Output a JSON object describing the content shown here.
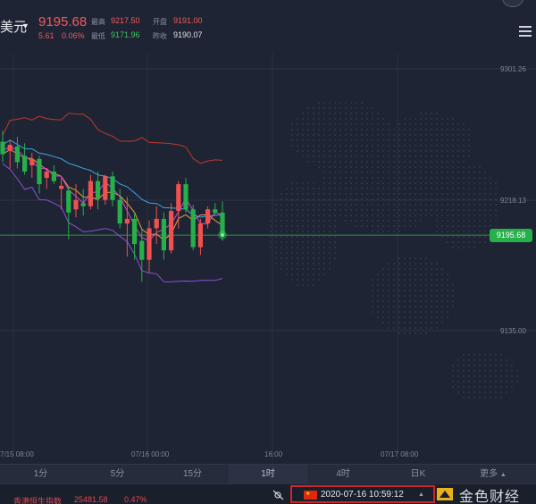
{
  "header": {
    "pair": "美元",
    "price": "9195.68",
    "change": "5.61",
    "change_pct": "0.06%",
    "ohlc": {
      "high_label": "最高",
      "high": "9217.50",
      "open_label": "开盘",
      "open": "9191.00",
      "low_label": "最低",
      "low": "9171.96",
      "prev_label": "昨收",
      "prev": "9190.07"
    }
  },
  "chart_data": {
    "type": "candlestick",
    "y_axis_ticks": [
      "9301.26",
      "9218.13",
      "9135.00"
    ],
    "x_axis_ticks": [
      "7/15 08:00",
      "07/16 00:00",
      "16:00",
      "07/17 08:00"
    ],
    "last_price": "9195.68",
    "candles": [
      {
        "o": 9255,
        "h": 9262,
        "l": 9242,
        "c": 9247
      },
      {
        "o": 9249,
        "h": 9256,
        "l": 9238,
        "c": 9253
      },
      {
        "o": 9252,
        "h": 9258,
        "l": 9238,
        "c": 9242
      },
      {
        "o": 9246,
        "h": 9254,
        "l": 9234,
        "c": 9236
      },
      {
        "o": 9240,
        "h": 9248,
        "l": 9232,
        "c": 9244
      },
      {
        "o": 9244,
        "h": 9246,
        "l": 9222,
        "c": 9228
      },
      {
        "o": 9232,
        "h": 9238,
        "l": 9225,
        "c": 9236
      },
      {
        "o": 9236,
        "h": 9240,
        "l": 9228,
        "c": 9230
      },
      {
        "o": 9225,
        "h": 9232,
        "l": 9212,
        "c": 9227
      },
      {
        "o": 9224,
        "h": 9226,
        "l": 9193,
        "c": 9210
      },
      {
        "o": 9212,
        "h": 9228,
        "l": 9207,
        "c": 9218
      },
      {
        "o": 9216,
        "h": 9225,
        "l": 9208,
        "c": 9214
      },
      {
        "o": 9214,
        "h": 9234,
        "l": 9212,
        "c": 9230
      },
      {
        "o": 9230,
        "h": 9236,
        "l": 9212,
        "c": 9219
      },
      {
        "o": 9218,
        "h": 9234,
        "l": 9215,
        "c": 9233
      },
      {
        "o": 9233,
        "h": 9236,
        "l": 9214,
        "c": 9218
      },
      {
        "o": 9218,
        "h": 9225,
        "l": 9200,
        "c": 9203
      },
      {
        "o": 9203,
        "h": 9220,
        "l": 9182,
        "c": 9206
      },
      {
        "o": 9206,
        "h": 9210,
        "l": 9180,
        "c": 9190
      },
      {
        "o": 9192,
        "h": 9200,
        "l": 9166,
        "c": 9180
      },
      {
        "o": 9180,
        "h": 9205,
        "l": 9172,
        "c": 9200
      },
      {
        "o": 9200,
        "h": 9214,
        "l": 9190,
        "c": 9206
      },
      {
        "o": 9206,
        "h": 9210,
        "l": 9180,
        "c": 9186
      },
      {
        "o": 9186,
        "h": 9216,
        "l": 9184,
        "c": 9211
      },
      {
        "o": 9211,
        "h": 9230,
        "l": 9200,
        "c": 9228
      },
      {
        "o": 9228,
        "h": 9232,
        "l": 9210,
        "c": 9212
      },
      {
        "o": 9212,
        "h": 9215,
        "l": 9186,
        "c": 9188
      },
      {
        "o": 9188,
        "h": 9206,
        "l": 9183,
        "c": 9203
      },
      {
        "o": 9203,
        "h": 9214,
        "l": 9200,
        "c": 9212
      },
      {
        "o": 9212,
        "h": 9216,
        "l": 9208,
        "c": 9210
      },
      {
        "o": 9210,
        "h": 9217,
        "l": 9192,
        "c": 9195.68
      }
    ]
  },
  "timeframes": [
    "1分",
    "5分",
    "15分",
    "1时",
    "4时",
    "日K",
    "更多"
  ],
  "active_timeframe": "1时",
  "footer": {
    "ticker_name": "香港恒生指数",
    "ticker_value": "25481.58",
    "ticker_pct": "0.47%",
    "timestamp": "2020-07-16 10:59:12",
    "brand": "金色财经"
  },
  "colors": {
    "up": "#f05050",
    "down": "#26b04a",
    "accent": "#c8282a"
  }
}
